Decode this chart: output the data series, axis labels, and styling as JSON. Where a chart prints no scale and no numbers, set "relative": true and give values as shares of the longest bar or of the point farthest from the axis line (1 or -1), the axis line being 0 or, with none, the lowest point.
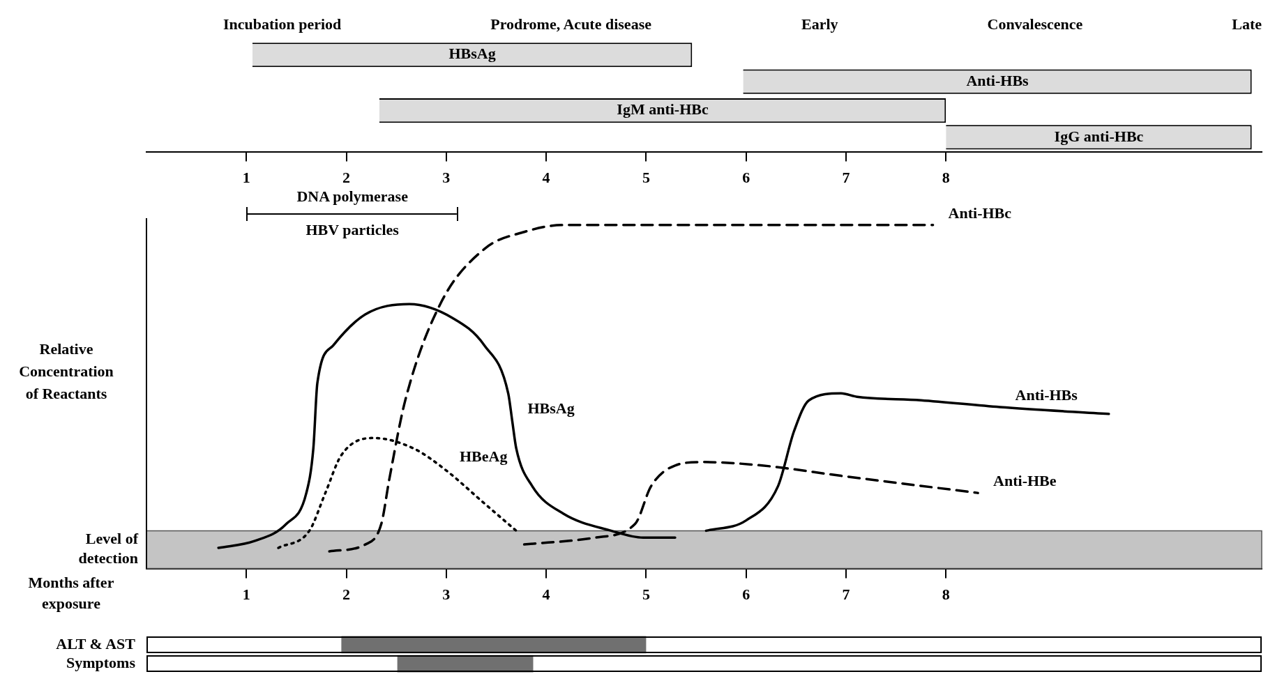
{
  "chart_data": [
    {
      "type": "bar",
      "orientation": "horizontal",
      "categories": [
        null,
        null
      ],
      "xlim": [
        0,
        11.16
      ],
      "xticks": [
        1,
        2,
        3,
        4,
        5,
        6,
        7,
        8
      ],
      "tick_labels": "x",
      "grid": false,
      "legend": false,
      "series": [
        {
          "color": "#dcdcdc",
          "base": [
            1.06,
            2.33
          ],
          "values": [
            4.4,
            5.67
          ],
          "value_labels": [
            "HBsAg",
            "IgM anti-HBc"
          ]
        },
        {
          "color": "#dcdcdc",
          "base": [
            5.97,
            8.0
          ],
          "values": [
            5.09,
            3.06
          ],
          "value_labels": [
            "Anti-HBs",
            "IgG anti-HBc"
          ]
        }
      ],
      "annotations": [
        "Incubation period",
        "Prodrome, Acute disease",
        "Early",
        "Convalescence",
        "Late"
      ]
    },
    {
      "type": "line",
      "relative": true,
      "xlabel": "Months after exposure",
      "ylabel": "Relative Concentration of Reactants",
      "xlim": [
        0,
        11.16
      ],
      "xticks": [
        1,
        2,
        3,
        4,
        5,
        6,
        7,
        8
      ],
      "grid": false,
      "legend": false,
      "marker": "none",
      "series": [
        {
          "color": "#000000",
          "line_style": "solid",
          "x": [
            0.72,
            1.08,
            1.4,
            1.6,
            1.67,
            1.71,
            1.87,
            2.19,
            2.63,
            3.06,
            3.38,
            3.62,
            3.66,
            3.7,
            3.86,
            4.17,
            4.65,
            4.97,
            5.29
          ],
          "values": [
            0.06,
            0.08,
            0.13,
            0.22,
            0.35,
            0.54,
            0.65,
            0.74,
            0.77,
            0.73,
            0.65,
            0.51,
            0.43,
            0.35,
            0.24,
            0.16,
            0.11,
            0.09,
            0.09
          ]
        },
        {
          "color": "#000000",
          "line_style": "dotted",
          "x": [
            1.32,
            1.63,
            1.79,
            1.95,
            2.27,
            2.67,
            2.98,
            3.38,
            3.7
          ],
          "values": [
            0.06,
            0.11,
            0.22,
            0.33,
            0.38,
            0.35,
            0.29,
            0.19,
            0.11
          ]
        },
        {
          "color": "#000000",
          "line_style": "dashed",
          "x": [
            1.83,
            2.19,
            2.35,
            2.43,
            2.59,
            2.94,
            3.38,
            3.78,
            4.17,
            5.76,
            7.87
          ],
          "values": [
            0.05,
            0.07,
            0.13,
            0.26,
            0.49,
            0.77,
            0.93,
            0.98,
            1.0,
            1.0,
            1.0
          ]
        },
        {
          "color": "#000000",
          "line_style": "dashed",
          "x": [
            3.78,
            4.49,
            4.89,
            5.05,
            5.29,
            5.56,
            6.16,
            6.95,
            8.32
          ],
          "values": [
            0.07,
            0.09,
            0.13,
            0.24,
            0.3,
            0.31,
            0.3,
            0.27,
            0.22
          ]
        },
        {
          "color": "#000000",
          "line_style": "solid",
          "x": [
            5.6,
            6.0,
            6.32,
            6.48,
            6.63,
            6.95,
            7.11,
            7.75,
            8.54,
            9.63
          ],
          "values": [
            0.11,
            0.14,
            0.24,
            0.4,
            0.49,
            0.51,
            0.5,
            0.49,
            0.47,
            0.45
          ]
        }
      ],
      "bands": [
        {
          "axis": "y",
          "from": 0,
          "to": 0.11,
          "label": "Level of detection",
          "color": "#c4c4c4"
        }
      ],
      "annotations": [
        "DNA polymerase",
        "HBV particles",
        {
          "text": "HBsAg",
          "x": 3.66,
          "y": 0.43
        },
        {
          "text": "HBeAg",
          "x": 2.98,
          "y": 0.29
        },
        {
          "text": "Anti-HBc",
          "x": 7.87,
          "y": 1.0
        },
        {
          "text": "Anti-HBs",
          "x": 8.54,
          "y": 0.47
        },
        {
          "text": "Anti-HBe",
          "x": 8.32,
          "y": 0.22
        }
      ]
    },
    {
      "type": "bar",
      "orientation": "horizontal",
      "categories": [
        "ALT & AST",
        "Symptoms"
      ],
      "xlim": [
        0,
        11.16
      ],
      "tick_labels": "y",
      "grid": false,
      "legend": false,
      "base": [
        1.95,
        2.51
      ],
      "values": [
        3.05,
        1.36
      ],
      "color": "#707070"
    }
  ]
}
